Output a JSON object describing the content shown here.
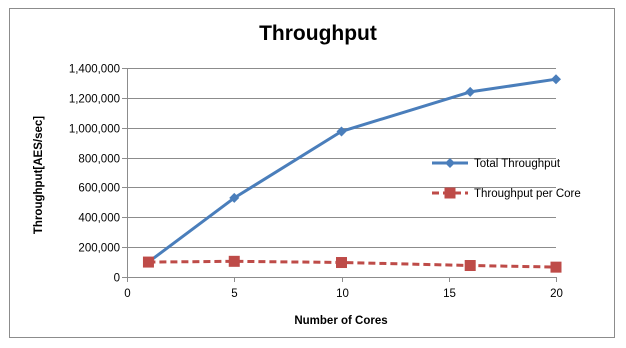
{
  "chart_data": {
    "type": "line",
    "title": "Throughput",
    "xlabel": "Number of Cores",
    "ylabel": "Throughput[AES/sec]",
    "xlim": [
      0,
      20
    ],
    "ylim": [
      0,
      1400000
    ],
    "x_ticks": [
      0,
      5,
      10,
      15,
      20
    ],
    "x_tick_labels": [
      "0",
      "5",
      "10",
      "15",
      "20"
    ],
    "y_ticks": [
      0,
      200000,
      400000,
      600000,
      800000,
      1000000,
      1200000,
      1400000
    ],
    "y_tick_labels": [
      "0",
      "200,000",
      "400,000",
      "600,000",
      "800,000",
      "1,000,000",
      "1,200,000",
      "1,400,000"
    ],
    "grid": true,
    "legend_position": "right",
    "series": [
      {
        "name": "Total Throughput",
        "color": "#4a7ebb",
        "marker": "diamond",
        "line_style": "solid",
        "x": [
          1,
          5,
          10,
          16,
          20
        ],
        "y": [
          100000,
          530000,
          975000,
          1240000,
          1325000
        ]
      },
      {
        "name": "Throughput per Core",
        "color": "#be4b48",
        "marker": "square",
        "line_style": "dashed",
        "x": [
          1,
          5,
          10,
          16,
          20
        ],
        "y": [
          100000,
          105000,
          97000,
          77000,
          66000
        ]
      }
    ]
  }
}
